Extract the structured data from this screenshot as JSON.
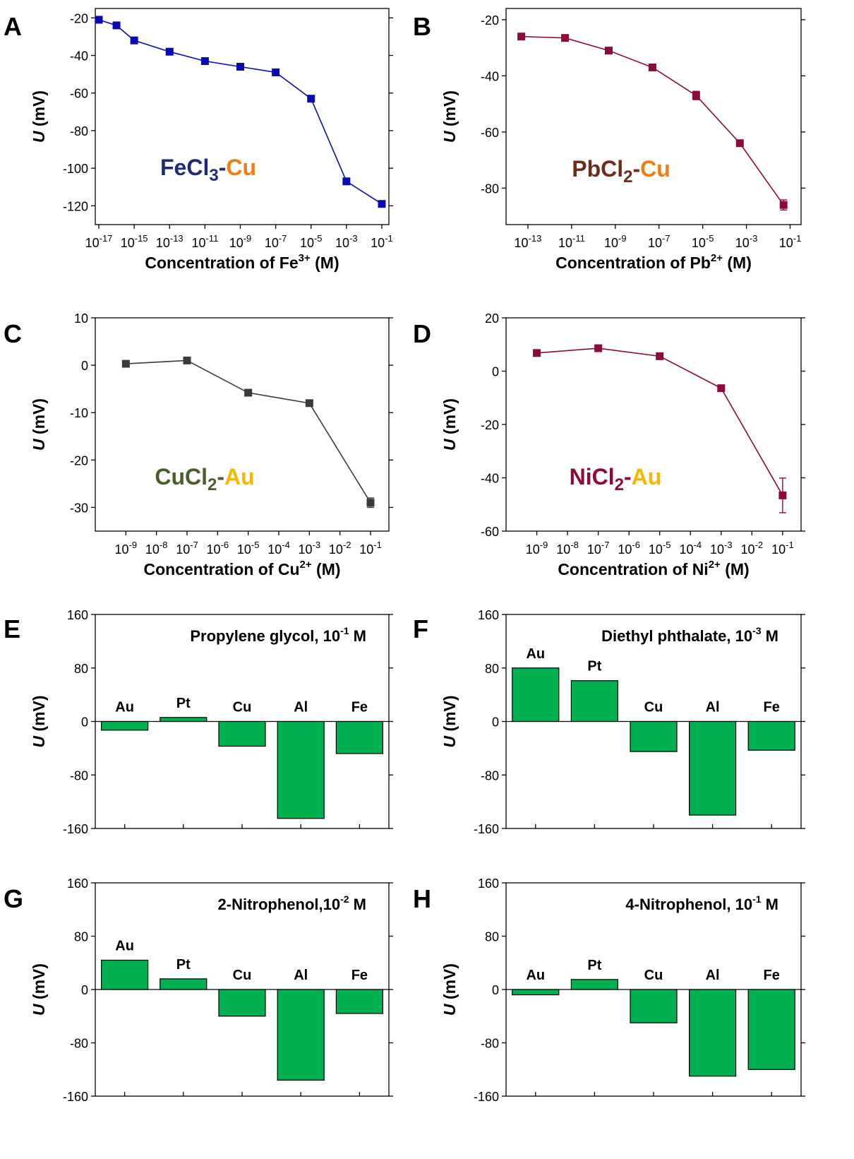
{
  "chart_data": [
    {
      "panel": "A",
      "type": "line",
      "xscale": "log",
      "x": [
        "1e-17",
        "1e-16",
        "1e-15",
        "1e-13",
        "1e-11",
        "1e-9",
        "1e-7",
        "1e-5",
        "1e-3",
        "1e-1"
      ],
      "series": [
        {
          "values": [
            -21,
            -24,
            -32,
            -38,
            -43,
            -46,
            -49,
            -63,
            -107,
            -119
          ],
          "color": "#0a0ab4"
        }
      ],
      "xticks": [
        [
          "-17"
        ],
        [
          "-15"
        ],
        [
          "-13"
        ],
        [
          "-11"
        ],
        [
          "-9"
        ],
        [
          "-7"
        ],
        [
          "-5"
        ],
        [
          "-3"
        ],
        [
          "-1"
        ]
      ],
      "xticks_exp": [
        "-17",
        "-15",
        "-13",
        "-11",
        "-9",
        "-7",
        "-5",
        "-3",
        "-1"
      ],
      "ylim": [
        -130,
        -15
      ],
      "yticks": [
        -20,
        -40,
        -60,
        -80,
        -100,
        -120
      ],
      "xlabel_pre": "Concentration of Fe",
      "xlabel_sup": "3+",
      "xlabel_post": " (M)",
      "ylabel": "U",
      "ylabel_unit": " (mV)",
      "annotation": {
        "parts": [
          {
            "text": "FeCl",
            "color": "#1f2a7a"
          },
          {
            "text": "3",
            "color": "#1f2a7a",
            "sub": true
          },
          {
            "text": "-",
            "color": "#1f2a7a"
          },
          {
            "text": "Cu",
            "color": "#f07c14"
          }
        ]
      }
    },
    {
      "panel": "B",
      "type": "line",
      "xscale": "log",
      "x": [
        "5e-14",
        "5e-12",
        "5e-10",
        "5e-8",
        "5e-6",
        "5e-4",
        "5e-2"
      ],
      "series": [
        {
          "values": [
            -26,
            -26.5,
            -31,
            -37,
            -47,
            -64,
            -86
          ],
          "errors": [
            0,
            0,
            0,
            0,
            1.5,
            0,
            1.8
          ],
          "color": "#8b0a3c"
        }
      ],
      "xticks_exp": [
        "-13",
        "-11",
        "-9",
        "-7",
        "-5",
        "-3",
        "-1"
      ],
      "ylim": [
        -93,
        -16
      ],
      "yticks": [
        -20,
        -40,
        -60,
        -80
      ],
      "xlabel_pre": "Concentration of Pb",
      "xlabel_sup": "2+",
      "xlabel_post": " (M)",
      "ylabel": "U",
      "ylabel_unit": " (mV)",
      "annotation": {
        "parts": [
          {
            "text": "PbCl",
            "color": "#6b2e1e"
          },
          {
            "text": "2",
            "color": "#6b2e1e",
            "sub": true
          },
          {
            "text": "-",
            "color": "#6b2e1e"
          },
          {
            "text": "Cu",
            "color": "#f07c14"
          }
        ]
      }
    },
    {
      "panel": "C",
      "type": "line",
      "xscale": "log",
      "x": [
        "1e-9",
        "1e-7",
        "1e-5",
        "1e-3",
        "1e-1"
      ],
      "series": [
        {
          "values": [
            0.3,
            1,
            -5.8,
            -8,
            -29
          ],
          "errors": [
            0,
            0,
            0.6,
            0,
            1
          ],
          "color": "#3a3a3a"
        }
      ],
      "xticks_exp": [
        "-9",
        "-8",
        "-7",
        "-6",
        "-5",
        "-4",
        "-3",
        "-2",
        "-1"
      ],
      "ylim": [
        -35,
        10
      ],
      "yticks": [
        10,
        0,
        -10,
        -20,
        -30
      ],
      "xlabel_pre": "Concentration of Cu",
      "xlabel_sup": "2+",
      "xlabel_post": " (M)",
      "ylabel": "U",
      "ylabel_unit": " (mV)",
      "annotation": {
        "parts": [
          {
            "text": "CuCl",
            "color": "#4a5e2a"
          },
          {
            "text": "2",
            "color": "#4a5e2a",
            "sub": true
          },
          {
            "text": "-",
            "color": "#4a5e2a"
          },
          {
            "text": "Au",
            "color": "#f5b800"
          }
        ]
      }
    },
    {
      "panel": "D",
      "type": "line",
      "xscale": "log",
      "x": [
        "1e-9",
        "1e-7",
        "1e-5",
        "1e-3",
        "1e-1"
      ],
      "series": [
        {
          "values": [
            6.8,
            8.6,
            5.6,
            -6.4,
            -46.6
          ],
          "errors": [
            0,
            0,
            0,
            0,
            6.5
          ],
          "color": "#8b0a3c"
        }
      ],
      "xticks_exp": [
        "-9",
        "-8",
        "-7",
        "-6",
        "-5",
        "-4",
        "-3",
        "-2",
        "-1"
      ],
      "ylim": [
        -60,
        20
      ],
      "yticks": [
        20,
        0,
        -20,
        -40,
        -60
      ],
      "xlabel_pre": "Concentration of Ni",
      "xlabel_sup": "2+",
      "xlabel_post": " (M)",
      "ylabel": "U",
      "ylabel_unit": " (mV)",
      "annotation": {
        "parts": [
          {
            "text": "NiCl",
            "color": "#8b0a3c"
          },
          {
            "text": "2",
            "color": "#8b0a3c",
            "sub": true
          },
          {
            "text": "-",
            "color": "#8b0a3c"
          },
          {
            "text": "Au",
            "color": "#f5b800"
          }
        ]
      }
    },
    {
      "panel": "E",
      "type": "bar",
      "categories": [
        "Au",
        "Pt",
        "Cu",
        "Al",
        "Fe"
      ],
      "values": [
        -13,
        6,
        -37,
        -145,
        -48
      ],
      "ylim": [
        -160,
        160
      ],
      "yticks": [
        160,
        80,
        0,
        -80,
        -160
      ],
      "title_pre": "Propylene glycol, 10",
      "title_sup": "-1",
      "title_post": " M",
      "ylabel": "U",
      "ylabel_unit": " (mV)",
      "bar_color": "#00b050"
    },
    {
      "panel": "F",
      "type": "bar",
      "categories": [
        "Au",
        "Pt",
        "Cu",
        "Al",
        "Fe"
      ],
      "values": [
        80,
        61,
        -45,
        -140,
        -43
      ],
      "ylim": [
        -160,
        160
      ],
      "yticks": [
        160,
        80,
        0,
        -80,
        -160
      ],
      "title_pre": "Diethyl phthalate, 10",
      "title_sup": "-3",
      "title_post": " M",
      "ylabel": "U",
      "ylabel_unit": " (mV)",
      "bar_color": "#00b050"
    },
    {
      "panel": "G",
      "type": "bar",
      "categories": [
        "Au",
        "Pt",
        "Cu",
        "Al",
        "Fe"
      ],
      "values": [
        44,
        16,
        -40,
        -136,
        -36
      ],
      "ylim": [
        -160,
        160
      ],
      "yticks": [
        160,
        80,
        0,
        -80,
        -160
      ],
      "title_pre": "2-Nitrophenol,10",
      "title_sup": "-2",
      "title_post": " M",
      "ylabel": "U",
      "ylabel_unit": " (mV)",
      "bar_color": "#00b050"
    },
    {
      "panel": "H",
      "type": "bar",
      "categories": [
        "Au",
        "Pt",
        "Cu",
        "Al",
        "Fe"
      ],
      "values": [
        -8,
        15,
        -50,
        -130,
        -120
      ],
      "ylim": [
        -160,
        160
      ],
      "yticks": [
        160,
        80,
        0,
        -80,
        -160
      ],
      "title_pre": "4-Nitrophenol, 10",
      "title_sup": "-1",
      "title_post": " M",
      "ylabel": "U",
      "ylabel_unit": " (mV)",
      "bar_color": "#00b050"
    }
  ]
}
